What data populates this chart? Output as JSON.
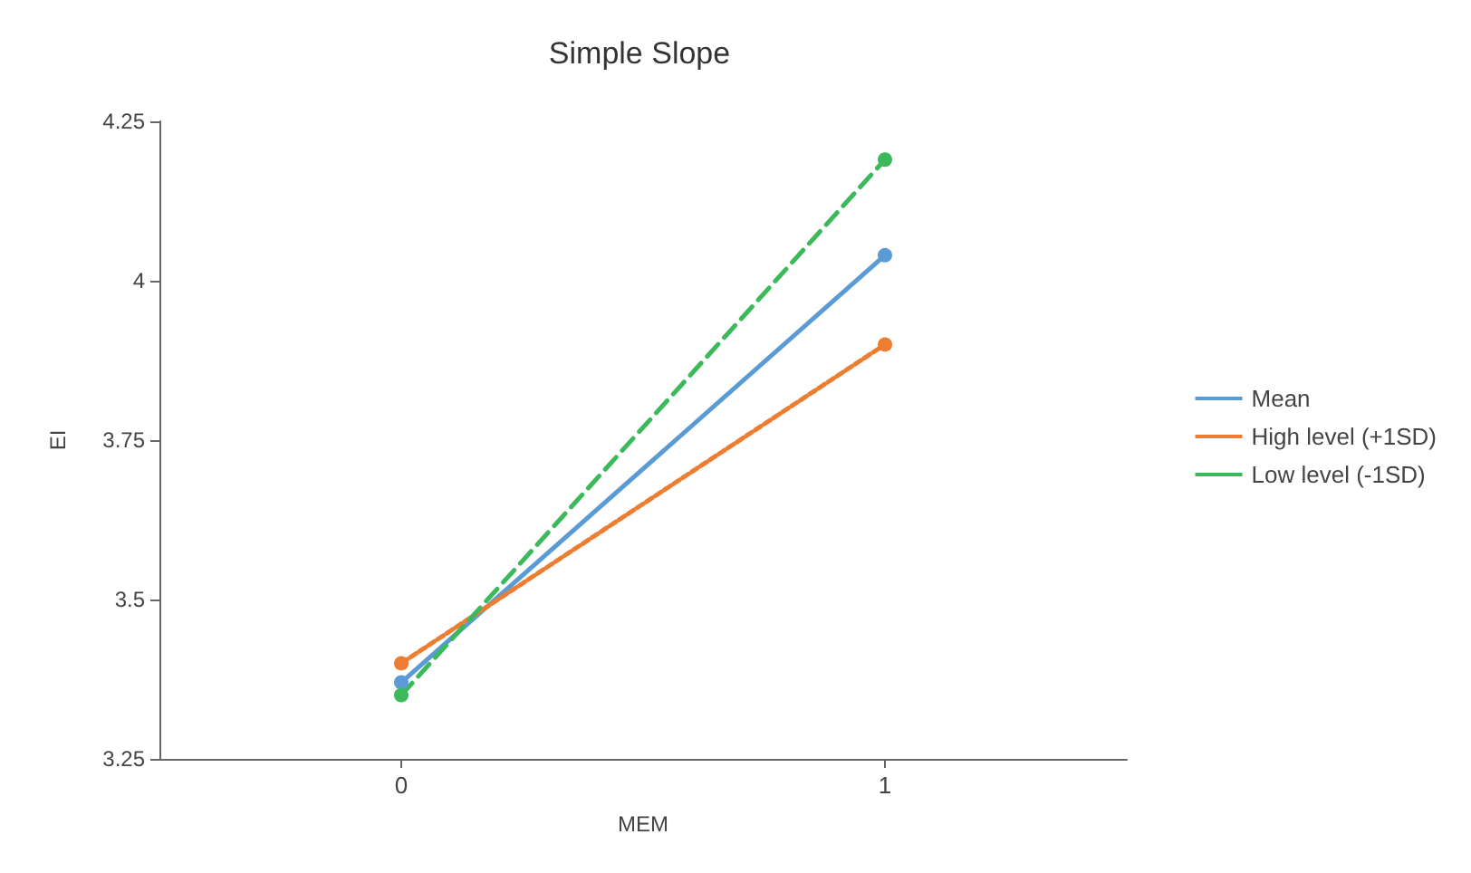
{
  "chart_data": {
    "type": "line",
    "title": "Simple Slope",
    "xlabel": "MEM",
    "ylabel": "EI",
    "categories": [
      "0",
      "1"
    ],
    "series": [
      {
        "name": "Mean",
        "color": "#5b9bd5",
        "values": [
          3.37,
          4.04
        ],
        "line_style": "solid"
      },
      {
        "name": "High level (+1SD)",
        "color": "#ed7d31",
        "values": [
          3.4,
          3.9
        ],
        "line_style": "dotted"
      },
      {
        "name": "Low level (-1SD)",
        "color": "#3cb95a",
        "values": [
          3.35,
          4.19
        ],
        "line_style": "dashed"
      }
    ],
    "ylim": [
      3.25,
      4.25
    ],
    "yticks": [
      3.25,
      3.5,
      3.75,
      4,
      4.25
    ],
    "grid": false,
    "legend": "right",
    "marker": "circle"
  }
}
